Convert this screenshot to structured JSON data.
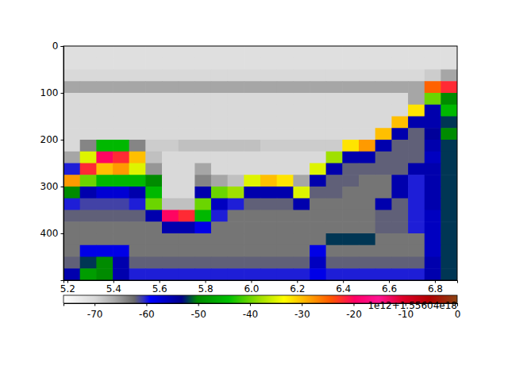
{
  "chart_data": {
    "type": "heatmap",
    "annotation": "1e12+1.55604e18",
    "xlim": [
      5.183,
      6.897
    ],
    "ylim": [
      500,
      0
    ],
    "xticks": [
      5.2,
      5.4,
      5.6,
      5.8,
      {
        "value": 6,
        "label": "6.0"
      },
      6.2,
      6.4,
      6.6,
      6.8
    ],
    "yticks": [
      0,
      100,
      200,
      300,
      400
    ],
    "x": [
      5.219,
      5.29,
      5.362,
      5.433,
      5.504,
      5.576,
      5.647,
      5.719,
      5.79,
      5.861,
      5.933,
      6.004,
      6.076,
      6.147,
      6.219,
      6.29,
      6.361,
      6.433,
      6.504,
      6.576,
      6.647,
      6.719,
      6.79,
      6.861
    ],
    "y": [
      12.5,
      37.5,
      62.5,
      87.5,
      112.5,
      137.5,
      162.5,
      187.5,
      212.5,
      237.5,
      262.5,
      287.5,
      312.5,
      337.5,
      362.5,
      387.5,
      412.5,
      437.5,
      462.5,
      487.5
    ],
    "values": [
      [
        -71,
        -71,
        -71,
        -71,
        -71,
        -71,
        -71,
        -71,
        -71,
        -71,
        -71,
        -71,
        -71,
        -71,
        -71,
        -71,
        -71,
        -71,
        -71,
        -71,
        -71,
        -71,
        -71,
        -71
      ],
      [
        -71,
        -71,
        -71,
        -71,
        -71,
        -71,
        -71,
        -71,
        -71,
        -71,
        -71,
        -71,
        -71,
        -71,
        -71,
        -71,
        -71,
        -71,
        -71,
        -71,
        -71,
        -71,
        -71,
        -71
      ],
      [
        -70,
        -70,
        -70,
        -70,
        -70,
        -70,
        -70,
        -70,
        -70,
        -70,
        -70,
        -70,
        -70,
        -70,
        -70,
        -70,
        -70,
        -70,
        -70,
        -70,
        -70,
        -70,
        -69,
        -66
      ],
      [
        -66,
        -66,
        -66,
        -66,
        -66,
        -66,
        -66,
        -66,
        -66,
        -66,
        -66,
        -66,
        -66,
        -66,
        -66,
        -66,
        -66,
        -66,
        -66,
        -66,
        -66,
        -66,
        -25,
        -22
      ],
      [
        -70,
        -70,
        -70,
        -70,
        -70,
        -70,
        -70,
        -70,
        -70,
        -70,
        -70,
        -70,
        -70,
        -70,
        -70,
        -70,
        -70,
        -70,
        -70,
        -70,
        -70,
        -66,
        -40,
        -50
      ],
      [
        -70,
        -70,
        -70,
        -70,
        -70,
        -70,
        -70,
        -70,
        -70,
        -70,
        -70,
        -70,
        -70,
        -70,
        -70,
        -70,
        -70,
        -70,
        -70,
        -70,
        -70,
        -32,
        -55,
        -45
      ],
      [
        -70,
        -70,
        -70,
        -70,
        -70,
        -70,
        -70,
        -70,
        -70,
        -70,
        -70,
        -70,
        -70,
        -70,
        -70,
        -70,
        -70,
        -70,
        -70,
        -70,
        -30,
        -55,
        -55,
        -52
      ],
      [
        -70,
        -70,
        -70,
        -70,
        -70,
        -70,
        -70,
        -70,
        -70,
        -70,
        -70,
        -70,
        -70,
        -70,
        -70,
        -70,
        -70,
        -70,
        -70,
        -30,
        -55,
        -62,
        -54,
        -50
      ],
      [
        -70,
        -64,
        -45,
        -45,
        -64,
        -69,
        -69,
        -68,
        -68,
        -68,
        -68,
        -68,
        -69,
        -69,
        -69,
        -69,
        -69,
        -32,
        -28,
        -55,
        -62,
        -62,
        -55,
        -52
      ],
      [
        -66,
        -35,
        -20,
        -22,
        -30,
        -68,
        -70,
        -70,
        -70,
        -70,
        -70,
        -70,
        -70,
        -70,
        -70,
        -70,
        -38,
        -55,
        -55,
        -62,
        -62,
        -62,
        -56,
        -52
      ],
      [
        -60,
        -22,
        -30,
        -28,
        -35,
        -65,
        -70,
        -70,
        -66,
        -70,
        -70,
        -70,
        -70,
        -70,
        -70,
        -35,
        -55,
        -62,
        -62,
        -62,
        -62,
        -55,
        -55,
        -52
      ],
      [
        -28,
        -40,
        -45,
        -45,
        -45,
        -50,
        -70,
        -70,
        -64,
        -66,
        -68,
        -35,
        -30,
        -32,
        -66,
        -55,
        -62,
        -62,
        -63,
        -63,
        -55,
        -60,
        -55,
        -52
      ],
      [
        -50,
        -55,
        -57,
        -57,
        -55,
        -45,
        -70,
        -70,
        -55,
        -40,
        -38,
        -55,
        -55,
        -55,
        -35,
        -62,
        -62,
        -63,
        -63,
        -63,
        -55,
        -60,
        -55,
        -52
      ],
      [
        -60,
        -61,
        -61,
        -61,
        -60,
        -40,
        -68,
        -68,
        -40,
        -56,
        -60,
        -62,
        -62,
        -62,
        -55,
        -63,
        -63,
        -63,
        -63,
        -55,
        -62,
        -60,
        -55,
        -52
      ],
      [
        -62,
        -62,
        -62,
        -62,
        -62,
        -55,
        -20,
        -22,
        -45,
        -60,
        -63,
        -63,
        -63,
        -63,
        -63,
        -63,
        -63,
        -63,
        -63,
        -62,
        -62,
        -60,
        -56,
        -52
      ],
      [
        -63,
        -63,
        -63,
        -63,
        -63,
        -63,
        -55,
        -55,
        -58,
        -63,
        -63,
        -63,
        -63,
        -63,
        -63,
        -63,
        -63,
        -63,
        -63,
        -62,
        -62,
        -60,
        -56,
        -52
      ],
      [
        -63,
        -63,
        -63,
        -63,
        -63,
        -63,
        -63,
        -63,
        -63,
        -63,
        -63,
        -63,
        -63,
        -63,
        -63,
        -63,
        -52,
        -52,
        -52,
        -63,
        -63,
        -63,
        -56,
        -52
      ],
      [
        -63,
        -58,
        -58,
        -58,
        -63,
        -63,
        -63,
        -63,
        -63,
        -63,
        -63,
        -63,
        -63,
        -63,
        -63,
        -58,
        -63,
        -63,
        -63,
        -63,
        -63,
        -63,
        -56,
        -52
      ],
      [
        -62,
        -52,
        -50,
        -55,
        -62,
        -62,
        -62,
        -62,
        -62,
        -62,
        -62,
        -62,
        -62,
        -62,
        -62,
        -56,
        -62,
        -62,
        -62,
        -62,
        -62,
        -62,
        -55,
        -52
      ],
      [
        -55,
        -48,
        -50,
        -55,
        -60,
        -60,
        -60,
        -60,
        -60,
        -60,
        -60,
        -60,
        -60,
        -60,
        -60,
        -58,
        -60,
        -60,
        -60,
        -60,
        -60,
        -60,
        -55,
        -52
      ]
    ],
    "colorbar": {
      "range": [
        -76,
        0
      ],
      "ticks": [
        -70,
        -60,
        -50,
        -40,
        -30,
        -20,
        -10,
        0
      ]
    }
  }
}
